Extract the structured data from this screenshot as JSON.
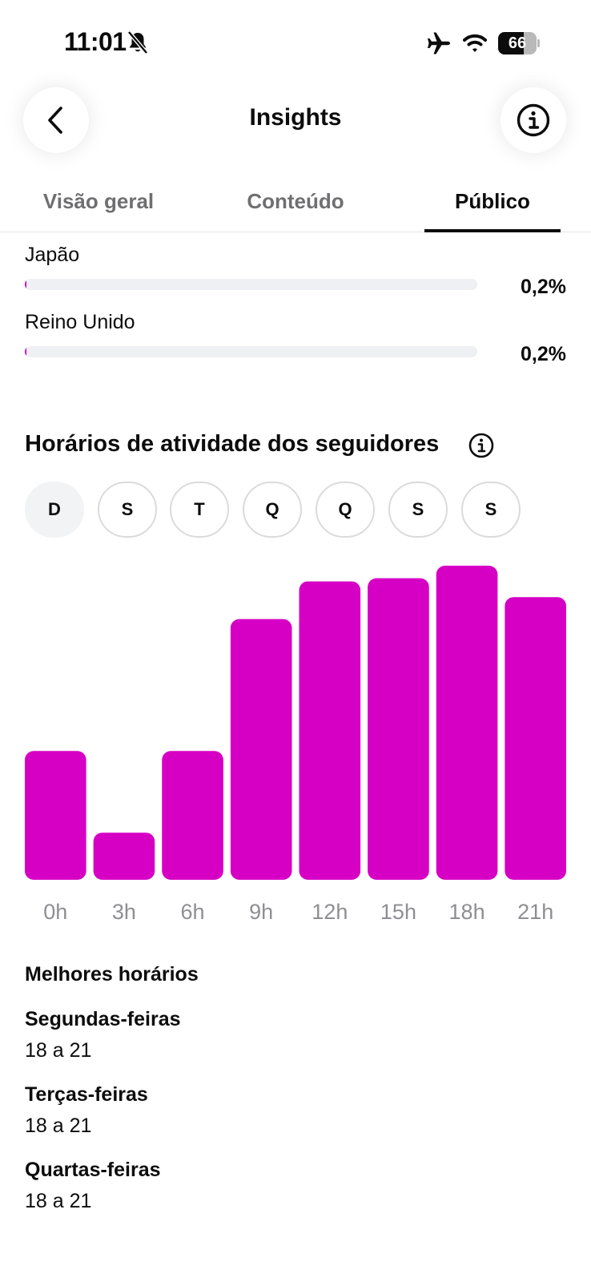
{
  "status_bar": {
    "time": "11:01",
    "battery": "66",
    "battery_level": 0.66,
    "icons": [
      "bell-slash-icon",
      "airplane-icon",
      "wifi-icon",
      "battery-icon"
    ]
  },
  "header": {
    "title": "Insights",
    "back_icon": "chevron-left-icon",
    "info_icon": "info-icon"
  },
  "tabs": [
    {
      "label": "Visão geral",
      "active": false
    },
    {
      "label": "Conteúdo",
      "active": false
    },
    {
      "label": "Público",
      "active": true
    }
  ],
  "countries": [
    {
      "name": "Japão",
      "percent": "0,2%",
      "value": 0.2
    },
    {
      "name": "Reino Unido",
      "percent": "0,2%",
      "value": 0.2
    }
  ],
  "activity": {
    "title": "Horários de atividade dos seguidores",
    "info_icon": "info-icon",
    "days": [
      {
        "label": "D",
        "selected": true
      },
      {
        "label": "S",
        "selected": false
      },
      {
        "label": "T",
        "selected": false
      },
      {
        "label": "Q",
        "selected": false
      },
      {
        "label": "Q",
        "selected": false
      },
      {
        "label": "S",
        "selected": false
      },
      {
        "label": "S",
        "selected": false
      }
    ]
  },
  "chart_data": {
    "type": "bar",
    "categories": [
      "0h",
      "3h",
      "6h",
      "9h",
      "12h",
      "15h",
      "18h",
      "21h"
    ],
    "values": [
      41,
      15,
      41,
      83,
      95,
      96,
      100,
      90
    ],
    "ylim": [
      0,
      100
    ],
    "color": "#d600c5",
    "grid": false
  },
  "best_times": {
    "title": "Melhores horários",
    "items": [
      {
        "day": "Segundas-feiras",
        "range": "18 a 21"
      },
      {
        "day": "Terças-feiras",
        "range": "18 a 21"
      },
      {
        "day": "Quartas-feiras",
        "range": "18 a 21"
      }
    ]
  },
  "colors": {
    "accent": "#d600c5",
    "text": "#0c0c0c",
    "muted": "#6f6f72",
    "axis_label": "#8e8e93",
    "track": "#eff0f4"
  }
}
